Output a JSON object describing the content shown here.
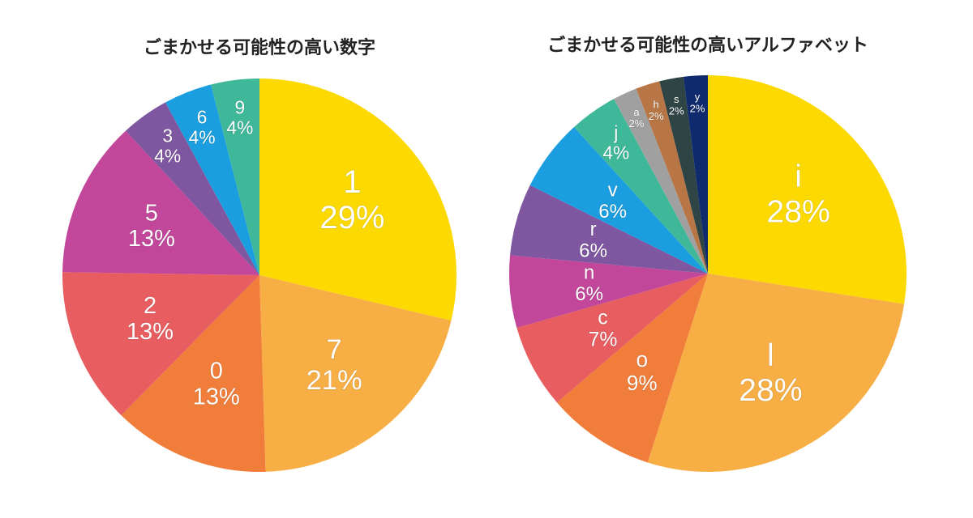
{
  "chart_data": [
    {
      "type": "pie",
      "title": "ごまかせる可能性の高い数字",
      "categories": [
        "1",
        "7",
        "0",
        "2",
        "5",
        "3",
        "6",
        "9"
      ],
      "values": [
        29,
        21,
        13,
        13,
        13,
        4,
        4,
        4
      ],
      "value_labels": [
        "29%",
        "21%",
        "13%",
        "13%",
        "13%",
        "4%",
        "4%",
        "4%"
      ],
      "colors": [
        "#fcd900",
        "#f7ae45",
        "#f07d3a",
        "#e85d60",
        "#c2479a",
        "#7f56a0",
        "#1a9ee0",
        "#3fb89a"
      ]
    },
    {
      "type": "pie",
      "title": "ごまかせる可能性の高いアルファベット",
      "categories": [
        "i",
        "l",
        "o",
        "c",
        "n",
        "r",
        "v",
        "j",
        "a",
        "h",
        "s",
        "y"
      ],
      "values": [
        28,
        28,
        9,
        7,
        6,
        6,
        6,
        4,
        2,
        2,
        2,
        2
      ],
      "value_labels": [
        "28%",
        "28%",
        "9%",
        "7%",
        "6%",
        "6%",
        "6%",
        "4%",
        "2%",
        "2%",
        "2%",
        "2%"
      ],
      "colors": [
        "#fcd900",
        "#f7ae45",
        "#f07d3a",
        "#e85d60",
        "#c2479a",
        "#7f56a0",
        "#1a9ee0",
        "#3fb89a",
        "#a0a0a0",
        "#b87545",
        "#2f4444",
        "#102a6e"
      ]
    }
  ]
}
